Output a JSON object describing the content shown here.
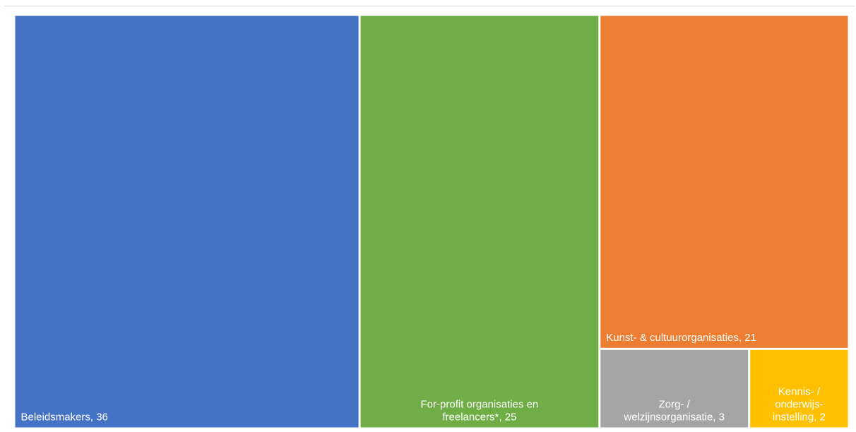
{
  "chart_data": {
    "type": "treemap",
    "items": [
      {
        "label_lines": [
          "Beleidsmakers, 36"
        ],
        "category": "Beleidsmakers",
        "value": 36,
        "color": "#4472C4"
      },
      {
        "label_lines": [
          "For-profit organisaties en",
          "freelancers*, 25"
        ],
        "category": "For-profit organisaties en freelancers*",
        "value": 25,
        "color": "#70AD47"
      },
      {
        "label_lines": [
          "Kunst- & cultuurorganisaties, 21"
        ],
        "category": "Kunst- & cultuurorganisaties",
        "value": 21,
        "color": "#ED7D31"
      },
      {
        "label_lines": [
          "Zorg- /",
          "welzijnsorganisatie, 3"
        ],
        "category": "Zorg- / welzijnsorganisatie",
        "value": 3,
        "color": "#A5A5A5"
      },
      {
        "label_lines": [
          "Kennis- /",
          "onderwijs-",
          "instelling, 2"
        ],
        "category": "Kennis- / onderwijs-instelling",
        "value": 2,
        "color": "#FFC000"
      }
    ]
  }
}
